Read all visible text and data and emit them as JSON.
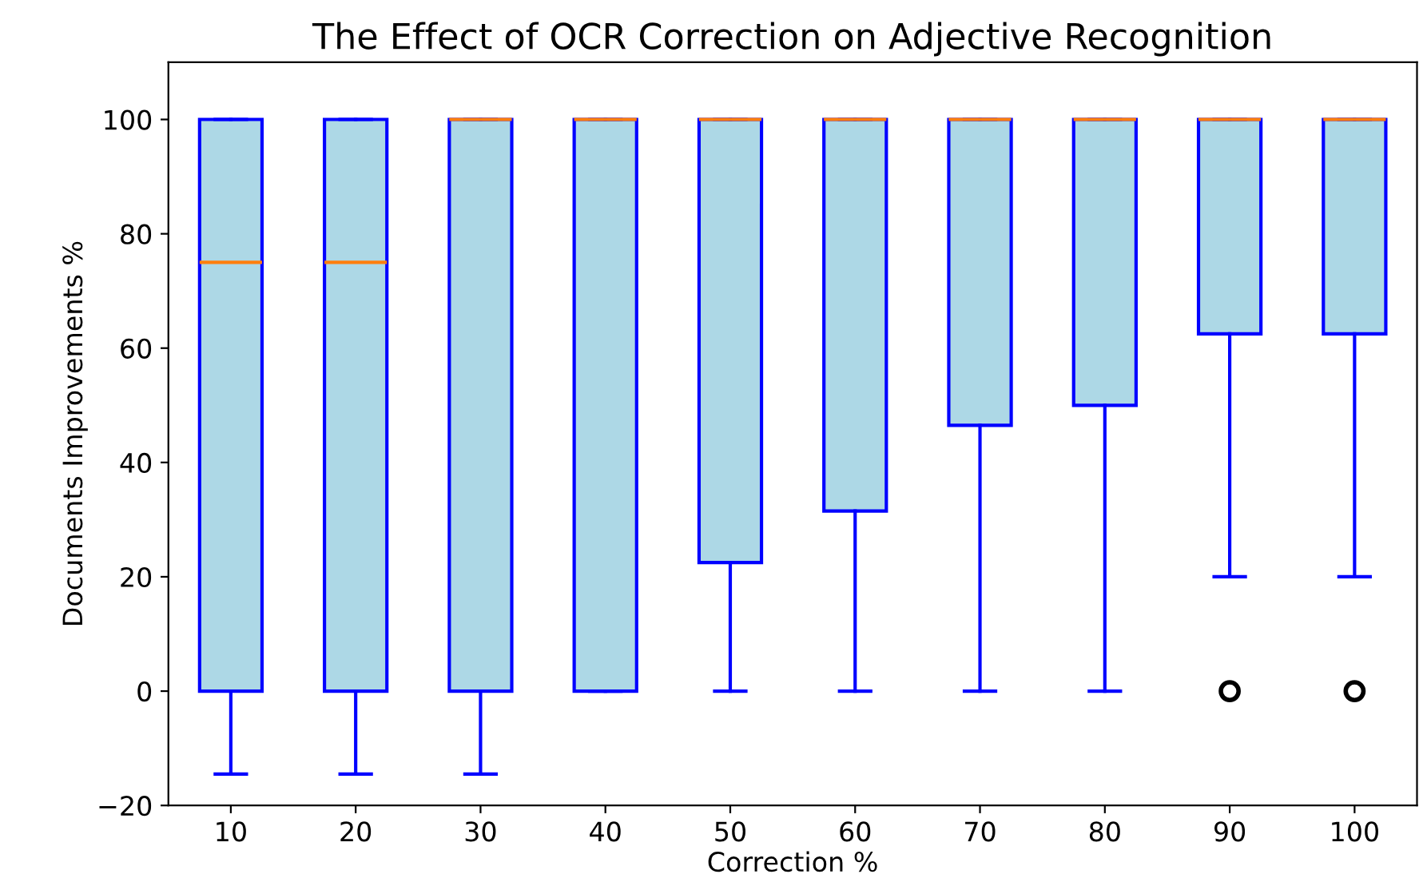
{
  "chart_data": {
    "type": "box",
    "title": "The Effect of OCR Correction on Adjective Recognition",
    "xlabel": "Correction %",
    "ylabel": "Documents Improvements %",
    "categories": [
      "10",
      "20",
      "30",
      "40",
      "50",
      "60",
      "70",
      "80",
      "90",
      "100"
    ],
    "color": "#add8e6",
    "boxes": [
      {
        "low": -14.5,
        "q1": 0,
        "median": 75,
        "q3": 100,
        "high": 100
      },
      {
        "low": -14.5,
        "q1": 0,
        "median": 75,
        "q3": 100,
        "high": 100
      },
      {
        "low": -14.5,
        "q1": 0,
        "median": 100,
        "q3": 100,
        "high": 100
      },
      {
        "low": 0,
        "q1": 0,
        "median": 100,
        "q3": 100,
        "high": 100
      },
      {
        "low": 0,
        "q1": 22.5,
        "median": 100,
        "q3": 100,
        "high": 100
      },
      {
        "low": 0,
        "q1": 31.5,
        "median": 100,
        "q3": 100,
        "high": 100
      },
      {
        "low": 0,
        "q1": 46.5,
        "median": 100,
        "q3": 100,
        "high": 100
      },
      {
        "low": 0,
        "q1": 50,
        "median": 100,
        "q3": 100,
        "high": 100
      },
      {
        "low": 20,
        "q1": 62.5,
        "median": 100,
        "q3": 100,
        "high": 100,
        "outliers": [
          0
        ]
      },
      {
        "low": 20,
        "q1": 62.5,
        "median": 100,
        "q3": 100,
        "high": 100,
        "outliers": [
          0
        ]
      }
    ],
    "ylim": [
      -20,
      110
    ],
    "yticks": [
      {
        "value": -20,
        "label": "−20"
      },
      0,
      20,
      40,
      60,
      80,
      100
    ],
    "grid": false,
    "legend": false
  }
}
